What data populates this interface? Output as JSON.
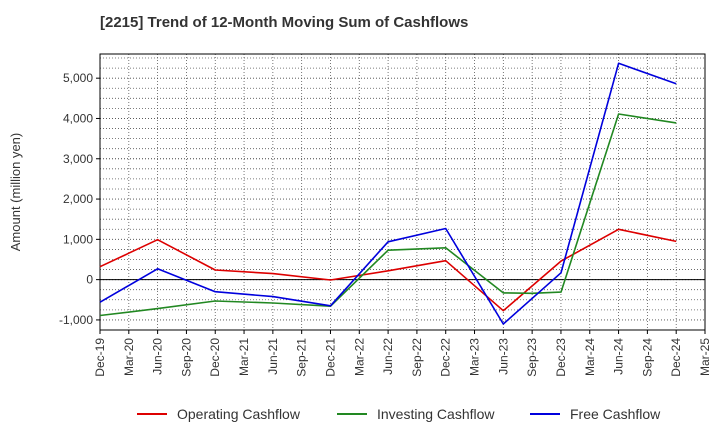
{
  "chart_data": {
    "type": "line",
    "title": "[2215]  Trend of 12-Month Moving Sum of Cashflows",
    "ylabel": "Amount (million yen)",
    "xlabel": "",
    "ylim": [
      -1250,
      5600
    ],
    "y_ticks": [
      -1000,
      0,
      1000,
      2000,
      3000,
      4000,
      5000
    ],
    "y_tick_labels": [
      "-1,000",
      "0",
      "1,000",
      "2,000",
      "3,000",
      "4,000",
      "5,000"
    ],
    "x_ticks": [
      "Dec-19",
      "Mar-20",
      "Jun-20",
      "Sep-20",
      "Dec-20",
      "Mar-21",
      "Jun-21",
      "Sep-21",
      "Dec-21",
      "Mar-22",
      "Jun-22",
      "Sep-22",
      "Dec-22",
      "Mar-23",
      "Jun-23",
      "Sep-23",
      "Dec-23",
      "Mar-24",
      "Jun-24",
      "Sep-24",
      "Dec-24",
      "Mar-25"
    ],
    "grid": true,
    "legend_position": "bottom",
    "series": [
      {
        "name": "Operating Cashflow",
        "color": "#dd0000",
        "x": [
          "Dec-19",
          "Jun-20",
          "Dec-20",
          "Jun-21",
          "Dec-21",
          "Jun-22",
          "Dec-22",
          "Jun-23",
          "Dec-23",
          "Jun-24",
          "Dec-24"
        ],
        "values": [
          320,
          990,
          240,
          150,
          -10,
          220,
          470,
          -770,
          460,
          1250,
          950
        ]
      },
      {
        "name": "Investing Cashflow",
        "color": "#228822",
        "x": [
          "Dec-19",
          "Jun-20",
          "Dec-20",
          "Jun-21",
          "Dec-21",
          "Jun-22",
          "Dec-22",
          "Jun-23",
          "Sep-23",
          "Dec-23",
          "Jun-24",
          "Dec-24"
        ],
        "values": [
          -890,
          -720,
          -530,
          -580,
          -660,
          730,
          790,
          -330,
          -340,
          -310,
          4110,
          3890
        ]
      },
      {
        "name": "Free Cashflow",
        "color": "#0000dd",
        "x": [
          "Dec-19",
          "Jun-20",
          "Dec-20",
          "Jun-21",
          "Dec-21",
          "Jun-22",
          "Dec-22",
          "Jun-23",
          "Dec-23",
          "Jun-24",
          "Dec-24"
        ],
        "values": [
          -560,
          270,
          -300,
          -420,
          -650,
          940,
          1270,
          -1100,
          170,
          5370,
          4860
        ]
      }
    ]
  }
}
